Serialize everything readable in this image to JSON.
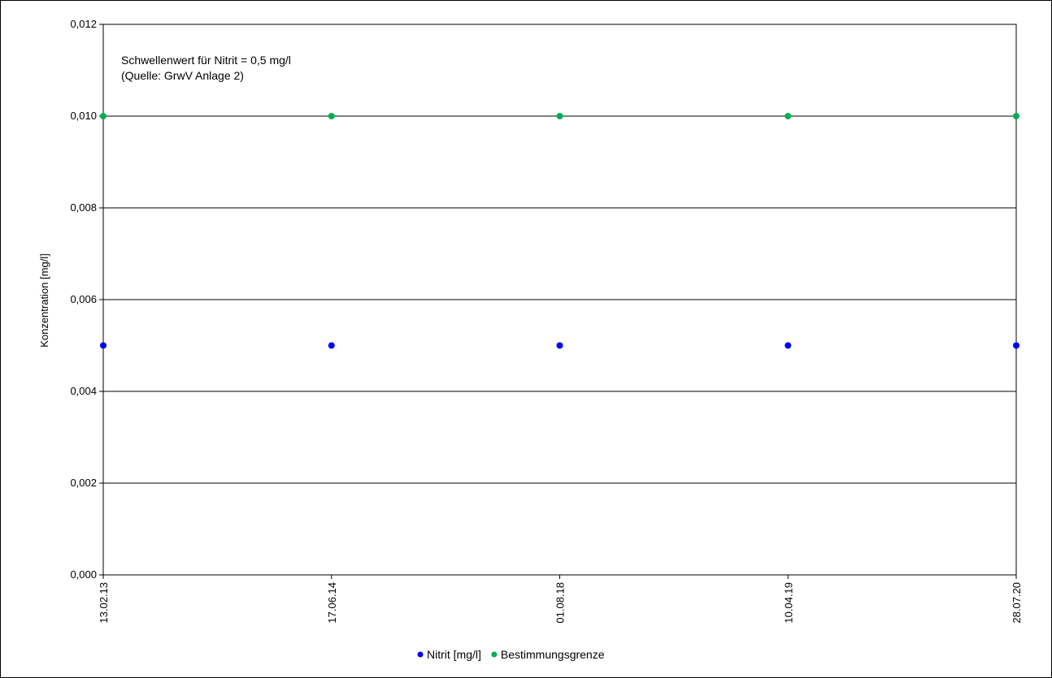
{
  "chart_data": {
    "type": "scatter",
    "title": "",
    "xlabel": "",
    "ylabel": "Konzentration [mg/l]",
    "x_categories": [
      "13.02.13",
      "17.06.14",
      "01.08.18",
      "10.04.19",
      "28.07.20"
    ],
    "ylim": [
      0,
      0.012
    ],
    "y_ticks": [
      0,
      0.002,
      0.004,
      0.006,
      0.008,
      0.01,
      0.012
    ],
    "y_tick_labels": [
      "0,000",
      "0,002",
      "0,004",
      "0,006",
      "0,008",
      "0,010",
      "0,012"
    ],
    "grid": true,
    "legend_position": "bottom-center",
    "series": [
      {
        "name": "Nitrit [mg/l]",
        "color": "#0000ff",
        "values": [
          0.005,
          0.005,
          0.005,
          0.005,
          0.005
        ]
      },
      {
        "name": "Bestimmungsgrenze",
        "color": "#00b050",
        "values": [
          0.01,
          0.01,
          0.01,
          0.01,
          0.01
        ]
      }
    ],
    "annotations": [
      "Schwellenwert für Nitrit = 0,5 mg/l",
      "(Quelle: GrwV Anlage 2)"
    ]
  }
}
